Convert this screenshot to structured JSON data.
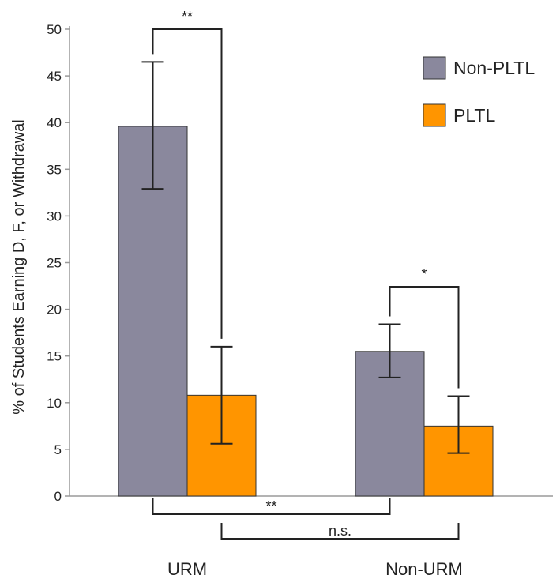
{
  "chart_data": {
    "type": "bar",
    "title": "",
    "xlabel": "",
    "ylabel": "% of Students Earning D, F, or Withdrawal",
    "ylim": [
      0,
      50
    ],
    "yticks": [
      0,
      5,
      10,
      15,
      20,
      25,
      30,
      35,
      40,
      45,
      50
    ],
    "categories": [
      "URM",
      "Non-URM"
    ],
    "series": [
      {
        "name": "Non-PLTL",
        "color": "#8a889d",
        "values": [
          39.6,
          15.5
        ],
        "error_low": [
          32.9,
          12.7
        ],
        "error_high": [
          46.5,
          18.4
        ]
      },
      {
        "name": "PLTL",
        "color": "#ff9500",
        "values": [
          10.8,
          7.5
        ],
        "error_low": [
          5.6,
          4.6
        ],
        "error_high": [
          16.0,
          10.7
        ]
      }
    ],
    "legend": {
      "position": "top-right"
    },
    "grid": false,
    "significance": [
      {
        "label": "**",
        "between": [
          "URM Non-PLTL",
          "URM PLTL"
        ],
        "placement": "above"
      },
      {
        "label": "*",
        "between": [
          "Non-URM Non-PLTL",
          "Non-URM PLTL"
        ],
        "placement": "above"
      },
      {
        "label": "**",
        "between": [
          "URM Non-PLTL",
          "Non-URM Non-PLTL"
        ],
        "placement": "below"
      },
      {
        "label": "n.s.",
        "between": [
          "URM PLTL",
          "Non-URM PLTL"
        ],
        "placement": "below"
      }
    ]
  }
}
